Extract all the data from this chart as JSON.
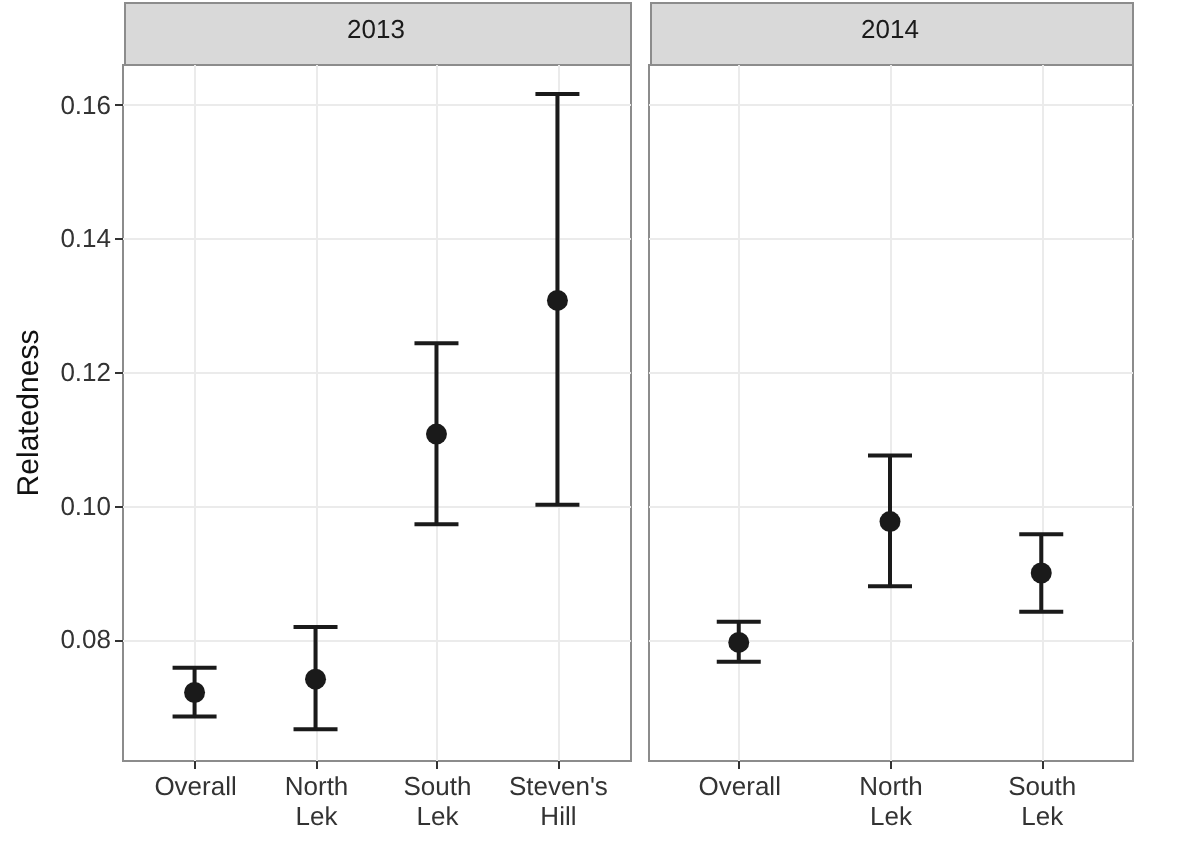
{
  "chart_data": [
    {
      "type": "scatter",
      "title": "2013",
      "ylabel": "Relatedness",
      "categories": [
        "Overall",
        "North Lek",
        "South Lek",
        "Steven's Hill"
      ],
      "series": [
        {
          "color": "#1a1a1a",
          "values": [
            0.072,
            0.074,
            0.1107,
            0.1307
          ],
          "errors": [
            [
              0.0684,
              0.0757
            ],
            [
              0.0665,
              0.0818
            ],
            [
              0.0972,
              0.1243
            ],
            [
              0.1001,
              0.1616
            ]
          ]
        }
      ],
      "ylim": [
        0.0619,
        0.1661
      ],
      "yticks": [
        0.08,
        {
          "value": 0.1,
          "label": "0.10"
        },
        0.12,
        0.14,
        0.16
      ],
      "grid": true,
      "marker": "circle"
    },
    {
      "type": "scatter",
      "title": "2014",
      "categories": [
        "Overall",
        "North Lek",
        "South Lek"
      ],
      "series": [
        {
          "color": "#1a1a1a",
          "values": [
            0.0795,
            0.0976,
            0.0899
          ],
          "errors": [
            [
              0.0766,
              0.0826
            ],
            [
              0.0879,
              0.1075
            ],
            [
              0.0841,
              0.0957
            ]
          ]
        }
      ],
      "ylim": [
        0.0619,
        0.1661
      ],
      "yticks": [
        0.08,
        0.1,
        0.12,
        0.14,
        0.16
      ],
      "grid": true,
      "marker": "circle",
      "tick_labels": "x"
    }
  ]
}
